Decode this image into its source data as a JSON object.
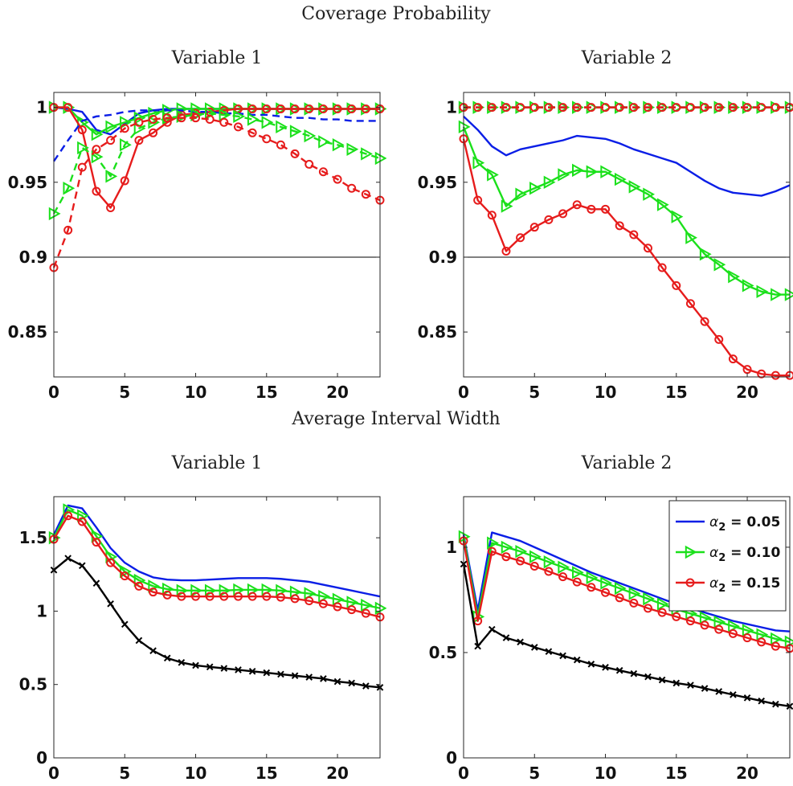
{
  "figure": {
    "section_titles": [
      "Coverage Probability",
      "Average Interval Width"
    ]
  },
  "colors": {
    "blue": "#0a1ee6",
    "green": "#1be01b",
    "red": "#e61c1c",
    "black": "#000000"
  },
  "legend": {
    "entries": [
      {
        "label_prefix": "α",
        "label_sub": "2",
        "label_value": " = 0.05",
        "color": "#0a1ee6",
        "marker": "none"
      },
      {
        "label_prefix": "α",
        "label_sub": "2",
        "label_value": " = 0.10",
        "color": "#1be01b",
        "marker": "triangle"
      },
      {
        "label_prefix": "α",
        "label_sub": "2",
        "label_value": " = 0.15",
        "color": "#e61c1c",
        "marker": "circle"
      }
    ]
  },
  "chart_data": [
    {
      "type": "line",
      "section": "Coverage Probability",
      "title": "Variable 1",
      "xlim": [
        0,
        23
      ],
      "ylim": [
        0.82,
        1.01
      ],
      "xticks": [
        0,
        5,
        10,
        15,
        20
      ],
      "yticks": [
        0.85,
        0.9,
        0.95,
        1
      ],
      "ytick_labels": [
        "0.85",
        "0.9",
        "0.95",
        "1"
      ],
      "reference_line": 0.9,
      "x": [
        0,
        1,
        2,
        3,
        4,
        5,
        6,
        7,
        8,
        9,
        10,
        11,
        12,
        13,
        14,
        15,
        16,
        17,
        18,
        19,
        20,
        21,
        22,
        23
      ],
      "series": [
        {
          "color": "blue",
          "dash": "solid",
          "marker": "none",
          "values": [
            1.0,
            0.999,
            0.997,
            0.985,
            0.982,
            0.989,
            0.996,
            0.998,
            0.999,
            0.999,
            0.999,
            0.999,
            0.999,
            0.999,
            0.999,
            0.999,
            0.999,
            0.999,
            0.999,
            0.999,
            0.999,
            0.999,
            0.999,
            0.999
          ]
        },
        {
          "color": "green",
          "dash": "solid",
          "marker": "triangle",
          "values": [
            1.0,
            1.0,
            0.99,
            0.982,
            0.987,
            0.99,
            0.993,
            0.996,
            0.998,
            0.999,
            0.999,
            0.999,
            0.999,
            0.999,
            0.999,
            0.999,
            0.999,
            0.999,
            0.999,
            0.999,
            0.999,
            0.999,
            0.999,
            0.999
          ]
        },
        {
          "color": "red",
          "dash": "solid",
          "marker": "circle",
          "values": [
            1.0,
            1.0,
            0.985,
            0.944,
            0.933,
            0.951,
            0.978,
            0.983,
            0.99,
            0.995,
            0.996,
            0.997,
            0.998,
            0.999,
            0.999,
            0.999,
            0.999,
            0.999,
            0.999,
            0.999,
            0.999,
            0.999,
            0.999,
            0.999
          ]
        },
        {
          "color": "blue",
          "dash": "dashed",
          "marker": "none",
          "values": [
            0.964,
            0.978,
            0.991,
            0.994,
            0.995,
            0.997,
            0.998,
            0.998,
            0.998,
            0.998,
            0.997,
            0.997,
            0.996,
            0.996,
            0.995,
            0.995,
            0.994,
            0.993,
            0.993,
            0.992,
            0.992,
            0.991,
            0.991,
            0.991
          ]
        },
        {
          "color": "green",
          "dash": "dashed",
          "marker": "triangle",
          "values": [
            0.929,
            0.946,
            0.973,
            0.967,
            0.954,
            0.975,
            0.986,
            0.99,
            0.993,
            0.994,
            0.995,
            0.996,
            0.995,
            0.994,
            0.992,
            0.99,
            0.987,
            0.984,
            0.981,
            0.977,
            0.975,
            0.972,
            0.969,
            0.966
          ]
        },
        {
          "color": "red",
          "dash": "dashed",
          "marker": "circle",
          "values": [
            0.893,
            0.918,
            0.96,
            0.972,
            0.978,
            0.986,
            0.99,
            0.992,
            0.993,
            0.993,
            0.993,
            0.992,
            0.99,
            0.987,
            0.983,
            0.979,
            0.975,
            0.969,
            0.962,
            0.957,
            0.952,
            0.946,
            0.942,
            0.938
          ]
        }
      ]
    },
    {
      "type": "line",
      "section": "Coverage Probability",
      "title": "Variable 2",
      "xlim": [
        0,
        23
      ],
      "ylim": [
        0.82,
        1.01
      ],
      "xticks": [
        0,
        5,
        10,
        15,
        20
      ],
      "yticks": [
        0.85,
        0.9,
        0.95,
        1
      ],
      "ytick_labels": [
        "0.85",
        "0.9",
        "0.95",
        "1"
      ],
      "reference_line": 0.9,
      "x": [
        0,
        1,
        2,
        3,
        4,
        5,
        6,
        7,
        8,
        9,
        10,
        11,
        12,
        13,
        14,
        15,
        16,
        17,
        18,
        19,
        20,
        21,
        22,
        23
      ],
      "series": [
        {
          "color": "blue",
          "dash": "solid",
          "marker": "none",
          "values": [
            0.994,
            0.985,
            0.974,
            0.968,
            0.972,
            0.974,
            0.976,
            0.978,
            0.981,
            0.98,
            0.979,
            0.976,
            0.972,
            0.969,
            0.966,
            0.963,
            0.957,
            0.951,
            0.946,
            0.943,
            0.942,
            0.941,
            0.944,
            0.948
          ]
        },
        {
          "color": "green",
          "dash": "solid",
          "marker": "triangle",
          "values": [
            0.987,
            0.963,
            0.955,
            0.934,
            0.942,
            0.946,
            0.95,
            0.955,
            0.958,
            0.957,
            0.957,
            0.952,
            0.947,
            0.942,
            0.935,
            0.927,
            0.913,
            0.902,
            0.895,
            0.887,
            0.881,
            0.877,
            0.875,
            0.875
          ]
        },
        {
          "color": "red",
          "dash": "solid",
          "marker": "circle",
          "values": [
            0.979,
            0.938,
            0.928,
            0.904,
            0.913,
            0.92,
            0.925,
            0.929,
            0.935,
            0.932,
            0.932,
            0.921,
            0.915,
            0.906,
            0.893,
            0.881,
            0.869,
            0.857,
            0.845,
            0.832,
            0.825,
            0.822,
            0.821,
            0.821
          ]
        },
        {
          "color": "blue",
          "dash": "dashed",
          "marker": "none",
          "values": [
            1,
            1,
            1,
            1,
            1,
            1,
            1,
            1,
            1,
            1,
            1,
            1,
            1,
            1,
            1,
            1,
            1,
            1,
            1,
            1,
            1,
            1,
            1,
            1
          ]
        },
        {
          "color": "green",
          "dash": "dashed",
          "marker": "triangle",
          "values": [
            1,
            1,
            1,
            1,
            1,
            1,
            1,
            1,
            1,
            1,
            1,
            1,
            1,
            1,
            1,
            1,
            1,
            1,
            1,
            1,
            1,
            1,
            1,
            1
          ]
        },
        {
          "color": "red",
          "dash": "dashed",
          "marker": "circle",
          "values": [
            1,
            1,
            1,
            1,
            1,
            1,
            1,
            1,
            1,
            1,
            1,
            1,
            1,
            1,
            1,
            1,
            1,
            1,
            1,
            1,
            1,
            1,
            1,
            1
          ]
        }
      ]
    },
    {
      "type": "line",
      "section": "Average Interval Width",
      "title": "Variable 1",
      "xlim": [
        0,
        23
      ],
      "ylim": [
        0,
        1.78
      ],
      "xticks": [
        0,
        5,
        10,
        15,
        20
      ],
      "yticks": [
        0,
        0.5,
        1,
        1.5
      ],
      "ytick_labels": [
        "0",
        "0.5",
        "1",
        "1.5"
      ],
      "x": [
        0,
        1,
        2,
        3,
        4,
        5,
        6,
        7,
        8,
        9,
        10,
        11,
        12,
        13,
        14,
        15,
        16,
        17,
        18,
        19,
        20,
        21,
        22,
        23
      ],
      "series": [
        {
          "color": "blue",
          "dash": "solid",
          "marker": "none",
          "values": [
            1.52,
            1.72,
            1.7,
            1.57,
            1.43,
            1.33,
            1.27,
            1.23,
            1.215,
            1.21,
            1.21,
            1.215,
            1.22,
            1.225,
            1.225,
            1.225,
            1.22,
            1.21,
            1.2,
            1.18,
            1.16,
            1.14,
            1.12,
            1.1
          ]
        },
        {
          "color": "green",
          "dash": "solid",
          "marker": "triangle",
          "values": [
            1.5,
            1.69,
            1.65,
            1.51,
            1.37,
            1.27,
            1.21,
            1.17,
            1.15,
            1.14,
            1.14,
            1.14,
            1.14,
            1.145,
            1.145,
            1.145,
            1.14,
            1.13,
            1.12,
            1.1,
            1.08,
            1.06,
            1.04,
            1.02
          ]
        },
        {
          "color": "red",
          "dash": "solid",
          "marker": "circle",
          "values": [
            1.49,
            1.65,
            1.61,
            1.47,
            1.33,
            1.24,
            1.17,
            1.13,
            1.11,
            1.1,
            1.1,
            1.1,
            1.1,
            1.1,
            1.1,
            1.1,
            1.095,
            1.085,
            1.07,
            1.05,
            1.03,
            1.01,
            0.985,
            0.96
          ]
        },
        {
          "color": "black",
          "dash": "solid",
          "marker": "x",
          "values": [
            1.28,
            1.36,
            1.31,
            1.19,
            1.05,
            0.91,
            0.8,
            0.73,
            0.68,
            0.65,
            0.63,
            0.62,
            0.61,
            0.6,
            0.59,
            0.58,
            0.57,
            0.56,
            0.55,
            0.54,
            0.52,
            0.51,
            0.49,
            0.48
          ]
        }
      ]
    },
    {
      "type": "line",
      "section": "Average Interval Width",
      "title": "Variable 2",
      "xlim": [
        0,
        23
      ],
      "ylim": [
        0,
        1.24
      ],
      "xticks": [
        0,
        5,
        10,
        15,
        20
      ],
      "yticks": [
        0,
        0.5,
        1
      ],
      "ytick_labels": [
        "0",
        "0.5",
        "1"
      ],
      "legend": "top-right",
      "x": [
        0,
        1,
        2,
        3,
        4,
        5,
        6,
        7,
        8,
        9,
        10,
        11,
        12,
        13,
        14,
        15,
        16,
        17,
        18,
        19,
        20,
        21,
        22,
        23
      ],
      "series": [
        {
          "color": "blue",
          "dash": "solid",
          "marker": "none",
          "values": [
            1.06,
            0.7,
            1.07,
            1.05,
            1.03,
            1.0,
            0.97,
            0.94,
            0.91,
            0.88,
            0.855,
            0.83,
            0.805,
            0.78,
            0.755,
            0.73,
            0.71,
            0.69,
            0.67,
            0.65,
            0.635,
            0.62,
            0.605,
            0.6
          ]
        },
        {
          "color": "green",
          "dash": "solid",
          "marker": "triangle",
          "values": [
            1.05,
            0.67,
            1.02,
            1.0,
            0.98,
            0.955,
            0.93,
            0.905,
            0.88,
            0.855,
            0.83,
            0.805,
            0.78,
            0.755,
            0.73,
            0.705,
            0.685,
            0.665,
            0.645,
            0.625,
            0.605,
            0.585,
            0.565,
            0.55
          ]
        },
        {
          "color": "red",
          "dash": "solid",
          "marker": "circle",
          "values": [
            1.03,
            0.65,
            0.98,
            0.955,
            0.935,
            0.91,
            0.885,
            0.86,
            0.835,
            0.81,
            0.785,
            0.76,
            0.735,
            0.71,
            0.69,
            0.67,
            0.65,
            0.63,
            0.61,
            0.59,
            0.57,
            0.55,
            0.53,
            0.52
          ]
        },
        {
          "color": "black",
          "dash": "solid",
          "marker": "x",
          "values": [
            0.92,
            0.53,
            0.61,
            0.57,
            0.55,
            0.525,
            0.505,
            0.485,
            0.465,
            0.445,
            0.43,
            0.415,
            0.4,
            0.385,
            0.37,
            0.355,
            0.345,
            0.33,
            0.315,
            0.3,
            0.285,
            0.27,
            0.255,
            0.245
          ]
        }
      ]
    }
  ]
}
